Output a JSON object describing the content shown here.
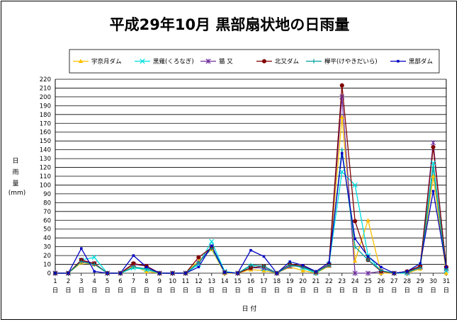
{
  "chart_data": {
    "type": "line",
    "title": "平成29年10月 黒部扇状地の日雨量",
    "xlabel": "日 付",
    "ylabel": [
      "日",
      "雨",
      "量",
      "(mm)"
    ],
    "ylim": [
      0,
      220
    ],
    "ytick_step": 10,
    "grid": true,
    "legend_position": "top",
    "categories": [
      "1",
      "2",
      "3",
      "4",
      "5",
      "6",
      "7",
      "8",
      "9",
      "10",
      "11",
      "12",
      "13",
      "14",
      "15",
      "16",
      "17",
      "18",
      "19",
      "20",
      "21",
      "22",
      "23",
      "24",
      "25",
      "26",
      "27",
      "28",
      "29",
      "30",
      "31"
    ],
    "category_suffix": "日",
    "series": [
      {
        "name": "宇奈月ダム",
        "color": "#ffc000",
        "marker": "triangle",
        "values": [
          0,
          0,
          12,
          10,
          0,
          0,
          8,
          2,
          0,
          0,
          0,
          14,
          27,
          0,
          0,
          4,
          3,
          0,
          7,
          3,
          0,
          8,
          177,
          14,
          60,
          0,
          0,
          0,
          5,
          110,
          0
        ]
      },
      {
        "name": "黒薙(くろなぎ)",
        "color": "#00e0e0",
        "marker": "x",
        "values": [
          0,
          0,
          15,
          18,
          0,
          0,
          6,
          4,
          0,
          0,
          0,
          10,
          36,
          2,
          0,
          8,
          5,
          0,
          10,
          6,
          0,
          10,
          115,
          100,
          20,
          2,
          0,
          0,
          8,
          125,
          3
        ]
      },
      {
        "name": "猫 又",
        "color": "#7030a0",
        "marker": "star",
        "values": [
          0,
          0,
          14,
          11,
          0,
          0,
          10,
          8,
          0,
          0,
          0,
          12,
          30,
          1,
          0,
          6,
          6,
          0,
          8,
          8,
          1,
          9,
          200,
          0,
          0,
          2,
          0,
          1,
          7,
          148,
          5
        ]
      },
      {
        "name": "北又ダム",
        "color": "#800000",
        "marker": "circle",
        "values": [
          0,
          0,
          15,
          11,
          0,
          0,
          11,
          8,
          0,
          0,
          0,
          18,
          29,
          1,
          0,
          6,
          8,
          0,
          10,
          8,
          1,
          10,
          213,
          59,
          15,
          2,
          0,
          2,
          8,
          143,
          7
        ]
      },
      {
        "name": "欅平(けやきだいら)",
        "color": "#00a0a0",
        "marker": "plus",
        "values": [
          0,
          0,
          13,
          10,
          0,
          0,
          7,
          5,
          0,
          0,
          0,
          12,
          28,
          1,
          0,
          9,
          8,
          0,
          9,
          7,
          1,
          9,
          140,
          30,
          15,
          3,
          0,
          1,
          6,
          120,
          4
        ]
      },
      {
        "name": "黒部ダム",
        "color": "#0000c0",
        "marker": "dot",
        "values": [
          0,
          0,
          28,
          2,
          0,
          0,
          20,
          7,
          0,
          0,
          0,
          7,
          31,
          1,
          0,
          26,
          19,
          0,
          13,
          9,
          2,
          12,
          136,
          39,
          19,
          7,
          0,
          2,
          11,
          93,
          7
        ]
      }
    ]
  }
}
